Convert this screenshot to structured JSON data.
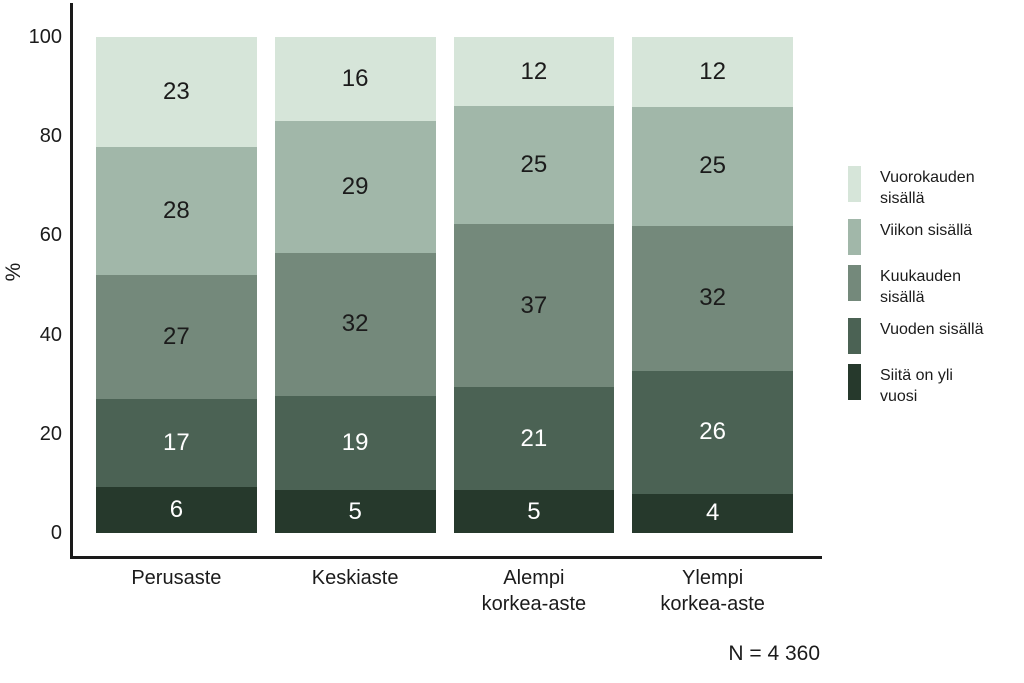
{
  "chart_data": {
    "type": "bar",
    "stacked": true,
    "orientation": "vertical",
    "title": "",
    "ylabel": "%",
    "ylim": [
      0,
      100
    ],
    "yticks": [
      0,
      20,
      40,
      60,
      80,
      100
    ],
    "grid": false,
    "legend_position": "right",
    "categories": [
      "Perusaste",
      "Keskiaste",
      "Alempi korkea-aste",
      "Ylempi korkea-aste"
    ],
    "category_label_lines": [
      [
        "Perusaste"
      ],
      [
        "Keskiaste"
      ],
      [
        "Alempi",
        "korkea-aste"
      ],
      [
        "Ylempi",
        "korkea-aste"
      ]
    ],
    "series": [
      {
        "name": "Vuorokauden sisällä",
        "legend_lines": [
          "Vuorokauden",
          "sisällä"
        ],
        "color": "#d6e5d9",
        "text_color": "#1b1b1b",
        "values": [
          23,
          16,
          12,
          12
        ]
      },
      {
        "name": "Viikon sisällä",
        "legend_lines": [
          "Viikon sisällä"
        ],
        "color": "#a1b7a9",
        "text_color": "#1b1b1b",
        "values": [
          28,
          29,
          25,
          25
        ]
      },
      {
        "name": "Kuukauden sisällä",
        "legend_lines": [
          "Kuukauden",
          "sisällä"
        ],
        "color": "#74897b",
        "text_color": "#1b1b1b",
        "values": [
          27,
          32,
          37,
          32
        ]
      },
      {
        "name": "Vuoden sisällä",
        "legend_lines": [
          "Vuoden sisällä"
        ],
        "color": "#4b6254",
        "text_color": "#ffffff",
        "values": [
          17,
          19,
          21,
          26
        ]
      },
      {
        "name": "Siitä on yli vuosi",
        "legend_lines": [
          "Siitä on yli",
          "vuosi"
        ],
        "color": "#26392c",
        "text_color": "#ffffff",
        "values": [
          6,
          5,
          5,
          4
        ]
      }
    ],
    "note": "N = 4 360",
    "axis_color": "#1a1a1a"
  }
}
